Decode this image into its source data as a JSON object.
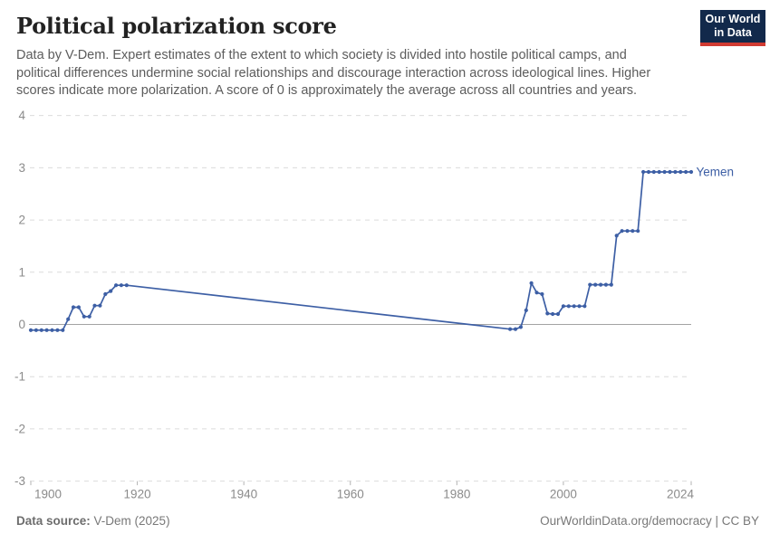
{
  "header": {
    "title": "Political polarization score",
    "subtitle_lines": [
      "Data by V-Dem. Expert estimates of the extent to which society is divided into hostile political camps, and",
      "political differences undermine social relationships and discourage interaction across ideological lines. Higher",
      "scores indicate more polarization. A score of 0 is approximately the average across all countries and years."
    ],
    "logo": {
      "line1": "Our World",
      "line2": "in Data",
      "bg_color": "#12294b",
      "bar_color": "#d13b32"
    }
  },
  "footer": {
    "source_label": "Data source:",
    "source_value": " V-Dem (2025)",
    "right_text": "OurWorldinData.org/democracy | CC BY"
  },
  "chart_data": {
    "type": "line",
    "title": "Political polarization score",
    "entity_label": "Yemen",
    "xlabel": "",
    "ylabel": "",
    "xlim": [
      1900,
      2024
    ],
    "ylim": [
      -3,
      4
    ],
    "xticks": [
      1900,
      1920,
      1940,
      1960,
      1980,
      2000,
      2024
    ],
    "yticks": [
      4,
      3,
      2,
      1,
      0,
      -1,
      -2,
      -3
    ],
    "grid": "horizontal-dashed",
    "zero_line": true,
    "legend_position": "end-of-line-label",
    "data_gap_between": [
      1918,
      1990
    ],
    "colors": {
      "line": "#3d5fa5",
      "entity_label": "#3d5fa5",
      "gridline": "#dcdcdc",
      "zero_line": "#a3a3a3",
      "tick_label": "#8b8b8b",
      "tick_mark": "#b3b3b3"
    },
    "series": [
      {
        "name": "Yemen",
        "points": [
          [
            1900,
            -0.11
          ],
          [
            1901,
            -0.11
          ],
          [
            1902,
            -0.11
          ],
          [
            1903,
            -0.11
          ],
          [
            1904,
            -0.11
          ],
          [
            1905,
            -0.11
          ],
          [
            1906,
            -0.11
          ],
          [
            1907,
            0.1
          ],
          [
            1908,
            0.33
          ],
          [
            1909,
            0.33
          ],
          [
            1910,
            0.15
          ],
          [
            1911,
            0.15
          ],
          [
            1912,
            0.36
          ],
          [
            1913,
            0.36
          ],
          [
            1914,
            0.58
          ],
          [
            1915,
            0.64
          ],
          [
            1916,
            0.75
          ],
          [
            1917,
            0.75
          ],
          [
            1918,
            0.75
          ],
          [
            1990,
            -0.09
          ],
          [
            1991,
            -0.09
          ],
          [
            1992,
            -0.05
          ],
          [
            1993,
            0.27
          ],
          [
            1994,
            0.79
          ],
          [
            1995,
            0.61
          ],
          [
            1996,
            0.58
          ],
          [
            1997,
            0.21
          ],
          [
            1998,
            0.2
          ],
          [
            1999,
            0.2
          ],
          [
            2000,
            0.35
          ],
          [
            2001,
            0.35
          ],
          [
            2002,
            0.35
          ],
          [
            2003,
            0.35
          ],
          [
            2004,
            0.35
          ],
          [
            2005,
            0.76
          ],
          [
            2006,
            0.76
          ],
          [
            2007,
            0.76
          ],
          [
            2008,
            0.76
          ],
          [
            2009,
            0.76
          ],
          [
            2010,
            1.7
          ],
          [
            2011,
            1.79
          ],
          [
            2012,
            1.79
          ],
          [
            2013,
            1.79
          ],
          [
            2014,
            1.79
          ],
          [
            2015,
            2.92
          ],
          [
            2016,
            2.92
          ],
          [
            2017,
            2.92
          ],
          [
            2018,
            2.92
          ],
          [
            2019,
            2.92
          ],
          [
            2020,
            2.92
          ],
          [
            2021,
            2.92
          ],
          [
            2022,
            2.92
          ],
          [
            2023,
            2.92
          ],
          [
            2024,
            2.92
          ]
        ]
      }
    ]
  }
}
